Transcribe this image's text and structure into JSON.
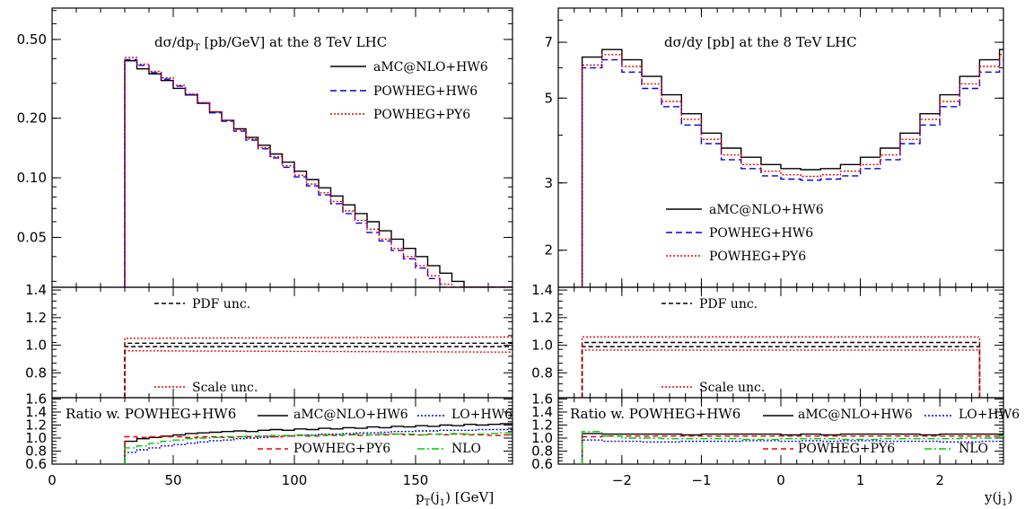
{
  "chart_data": [
    {
      "id": "pt",
      "type": "line",
      "x_label": "p_T(j_1) [GeV]",
      "x_label_main": "p",
      "x_label_sub1": "T",
      "x_label_mid": "(j",
      "x_label_sub2": "1",
      "x_label_end": ") [GeV]",
      "xlim": [
        0,
        190
      ],
      "x_ticks": [
        0,
        50,
        100,
        150
      ],
      "x_tick_labels": [
        "0",
        "50",
        "100",
        "150"
      ],
      "main": {
        "title": "dσ/dp_T [pb/GeV] at the 8 TeV LHC",
        "title_main": "dσ/dp",
        "title_sub": "T",
        "title_rest": " [pb/GeV] at the 8 TeV LHC",
        "yscale": "log",
        "ylim": [
          0.028,
          0.72
        ],
        "y_ticks": [
          0.05,
          0.1,
          0.2,
          0.5
        ],
        "y_tick_labels": [
          "0.05",
          "0.10",
          "0.20",
          "0.50"
        ],
        "legend": [
          {
            "label": "aMC@NLO+HW6",
            "color": "#000000",
            "dash": "none"
          },
          {
            "label": "POWHEG+HW6",
            "color": "#0000ee",
            "dash": "7,4"
          },
          {
            "label": "POWHEG+PY6",
            "color": "#ee0000",
            "dash": "2,2"
          }
        ],
        "series": [
          {
            "name": "aMC@NLO+HW6",
            "x_start": 30,
            "bin_width": 5,
            "values": [
              0.39,
              0.355,
              0.335,
              0.31,
              0.283,
              0.262,
              0.238,
              0.215,
              0.195,
              0.177,
              0.16,
              0.146,
              0.132,
              0.12,
              0.108,
              0.098,
              0.089,
              0.081,
              0.073,
              0.066,
              0.06,
              0.054,
              0.049,
              0.044,
              0.04,
              0.036,
              0.033,
              0.03,
              0.027,
              0.025,
              0.023,
              0.021
            ]
          },
          {
            "name": "POWHEG+HW6",
            "x_start": 30,
            "bin_width": 5,
            "values": [
              0.395,
              0.37,
              0.34,
              0.315,
              0.29,
              0.263,
              0.238,
              0.213,
              0.193,
              0.172,
              0.155,
              0.14,
              0.126,
              0.113,
              0.101,
              0.091,
              0.082,
              0.074,
              0.066,
              0.059,
              0.053,
              0.048,
              0.043,
              0.039,
              0.035,
              0.031,
              0.028,
              0.026,
              0.023,
              0.021,
              0.019,
              0.018
            ]
          },
          {
            "name": "POWHEG+PY6",
            "x_start": 30,
            "bin_width": 5,
            "values": [
              0.405,
              0.375,
              0.345,
              0.32,
              0.293,
              0.265,
              0.24,
              0.216,
              0.195,
              0.175,
              0.157,
              0.142,
              0.128,
              0.115,
              0.103,
              0.093,
              0.084,
              0.076,
              0.068,
              0.061,
              0.055,
              0.049,
              0.044,
              0.04,
              0.036,
              0.032,
              0.029,
              0.026,
              0.024,
              0.022,
              0.02,
              0.018
            ]
          }
        ]
      },
      "unc": {
        "ylim": [
          0.62,
          1.42
        ],
        "y_ticks": [
          0.8,
          1.0,
          1.2,
          1.4
        ],
        "y_tick_labels": [
          "0.8",
          "1.0",
          "1.2",
          "1.4"
        ],
        "legend": [
          {
            "label": "PDF unc.",
            "color": "#000000",
            "dash": "5,3"
          },
          {
            "label": "Scale unc.",
            "color": "#ee0000",
            "dash": "2,2"
          }
        ],
        "series": [
          {
            "name": "PDF up",
            "x": [
              30,
              190
            ],
            "values": [
              1.015,
              1.015
            ]
          },
          {
            "name": "PDF down",
            "x": [
              30,
              190
            ],
            "values": [
              0.99,
              0.99
            ]
          },
          {
            "name": "Scale up",
            "x": [
              30,
              190
            ],
            "values": [
              1.05,
              1.06
            ]
          },
          {
            "name": "Scale down",
            "x": [
              30,
              190
            ],
            "values": [
              0.96,
              0.95
            ]
          }
        ]
      },
      "ratio": {
        "title": "Ratio w. POWHEG+HW6",
        "ylim": [
          0.6,
          1.62
        ],
        "y_ticks": [
          0.6,
          0.8,
          1.0,
          1.2,
          1.4,
          1.6
        ],
        "y_tick_labels": [
          "0.6",
          "0.8",
          "1.0",
          "1.2",
          "1.4",
          "1.6"
        ],
        "legend": [
          {
            "label": "aMC@NLO+HW6",
            "color": "#000000",
            "dash": "none"
          },
          {
            "label": "LO+HW6",
            "color": "#0000ee",
            "dash": "2,2"
          },
          {
            "label": "POWHEG+PY6",
            "color": "#ee0000",
            "dash": "6,4"
          },
          {
            "label": "NLO",
            "color": "#00cc00",
            "dash": "8,3,2,3"
          }
        ],
        "series": [
          {
            "name": "aMC@NLO+HW6",
            "x_start": 30,
            "bin_width": 5,
            "values": [
              0.95,
              0.99,
              1.01,
              1.03,
              1.05,
              1.07,
              1.08,
              1.09,
              1.1,
              1.11,
              1.1,
              1.12,
              1.13,
              1.12,
              1.14,
              1.13,
              1.15,
              1.14,
              1.16,
              1.15,
              1.17,
              1.16,
              1.18,
              1.17,
              1.19,
              1.18,
              1.2,
              1.19,
              1.21,
              1.2,
              1.21,
              1.22
            ]
          },
          {
            "name": "LO+HW6",
            "x_start": 30,
            "bin_width": 5,
            "values": [
              0.78,
              0.82,
              0.85,
              0.88,
              0.9,
              0.92,
              0.94,
              0.96,
              0.97,
              0.99,
              1.0,
              1.01,
              1.02,
              1.03,
              1.04,
              1.05,
              1.06,
              1.06,
              1.07,
              1.08,
              1.08,
              1.09,
              1.1,
              1.1,
              1.11,
              1.11,
              1.12,
              1.12,
              1.12,
              1.13,
              1.13,
              1.13
            ]
          },
          {
            "name": "POWHEG+PY6",
            "x_start": 30,
            "bin_width": 5,
            "values": [
              1.02,
              1.01,
              1.02,
              1.02,
              1.02,
              1.01,
              1.02,
              1.02,
              1.01,
              1.02,
              1.02,
              1.03,
              1.02,
              1.03,
              1.04,
              1.03,
              1.04,
              1.04,
              1.05,
              1.04,
              1.05,
              1.05,
              1.06,
              1.05,
              1.05,
              1.06,
              1.05,
              1.06,
              1.05,
              1.05,
              1.04,
              1.05
            ]
          },
          {
            "name": "NLO",
            "x_start": 30,
            "bin_width": 5,
            "values": [
              0.85,
              0.88,
              0.92,
              0.95,
              0.97,
              0.99,
              1.0,
              1.01,
              1.02,
              1.02,
              1.03,
              1.03,
              1.04,
              1.04,
              1.05,
              1.04,
              1.05,
              1.05,
              1.05,
              1.06,
              1.05,
              1.06,
              1.06,
              1.06,
              1.05,
              1.06,
              1.06,
              1.07,
              1.06,
              1.06,
              1.07,
              1.08
            ]
          }
        ]
      }
    },
    {
      "id": "y",
      "type": "line",
      "x_label": "y(j_1)",
      "x_label_main": "y(j",
      "x_label_sub": "1",
      "x_label_end": ")",
      "xlim": [
        -2.8,
        2.8
      ],
      "x_ticks": [
        -2,
        -1,
        0,
        1,
        2
      ],
      "x_tick_labels": [
        "−2",
        "−1",
        "0",
        "1",
        "2"
      ],
      "main": {
        "title": "dσ/dy [pb] at the 8 TeV LHC",
        "yscale": "log",
        "ylim": [
          1.6,
          8.6
        ],
        "y_ticks": [
          2,
          3,
          5,
          7
        ],
        "y_tick_labels": [
          "2",
          "3",
          "5",
          "7"
        ],
        "legend": [
          {
            "label": "aMC@NLO+HW6",
            "color": "#000000",
            "dash": "none"
          },
          {
            "label": "POWHEG+HW6",
            "color": "#0000ee",
            "dash": "7,4"
          },
          {
            "label": "POWHEG+PY6",
            "color": "#ee0000",
            "dash": "2,2"
          }
        ],
        "series": [
          {
            "name": "aMC@NLO+HW6",
            "x_start": -2.5,
            "bin_width": 0.25,
            "values": [
              6.4,
              6.7,
              6.3,
              5.7,
              5.1,
              4.55,
              4.05,
              3.7,
              3.5,
              3.35,
              3.27,
              3.25,
              3.27,
              3.35,
              3.5,
              3.7,
              4.05,
              4.55,
              5.1,
              5.7,
              6.3,
              6.7,
              6.4
            ]
          },
          {
            "name": "POWHEG+HW6",
            "x_start": -2.5,
            "bin_width": 0.25,
            "values": [
              6.0,
              6.3,
              5.85,
              5.3,
              4.75,
              4.25,
              3.8,
              3.45,
              3.27,
              3.13,
              3.07,
              3.05,
              3.07,
              3.13,
              3.27,
              3.45,
              3.8,
              4.25,
              4.75,
              5.3,
              5.85,
              6.3,
              6.0
            ]
          },
          {
            "name": "POWHEG+PY6",
            "x_start": -2.5,
            "bin_width": 0.25,
            "values": [
              6.1,
              6.5,
              6.05,
              5.45,
              4.9,
              4.4,
              3.9,
              3.55,
              3.35,
              3.22,
              3.15,
              3.12,
              3.15,
              3.22,
              3.35,
              3.55,
              3.9,
              4.4,
              4.9,
              5.45,
              6.05,
              6.5,
              6.1
            ]
          }
        ]
      },
      "unc": {
        "ylim": [
          0.62,
          1.42
        ],
        "y_ticks": [
          0.8,
          1.0,
          1.2,
          1.4
        ],
        "y_tick_labels": [
          "0.8",
          "1.0",
          "1.2",
          "1.4"
        ],
        "legend": [
          {
            "label": "PDF unc.",
            "color": "#000000",
            "dash": "5,3"
          },
          {
            "label": "Scale unc.",
            "color": "#ee0000",
            "dash": "2,2"
          }
        ],
        "series": [
          {
            "name": "PDF up",
            "x": [
              -2.5,
              2.5
            ],
            "values": [
              1.02,
              1.02
            ]
          },
          {
            "name": "PDF down",
            "x": [
              -2.5,
              2.5
            ],
            "values": [
              0.99,
              0.99
            ]
          },
          {
            "name": "Scale up",
            "x": [
              -2.5,
              2.5
            ],
            "values": [
              1.06,
              1.06
            ]
          },
          {
            "name": "Scale down",
            "x": [
              -2.5,
              2.5
            ],
            "values": [
              0.965,
              0.965
            ]
          }
        ]
      },
      "ratio": {
        "title": "Ratio w. POWHEG+HW6",
        "ylim": [
          0.6,
          1.62
        ],
        "y_ticks": [
          0.6,
          0.8,
          1.0,
          1.2,
          1.4,
          1.6
        ],
        "y_tick_labels": [
          "0.6",
          "0.8",
          "1.0",
          "1.2",
          "1.4",
          "1.6"
        ],
        "legend": [
          {
            "label": "aMC@NLO+HW6",
            "color": "#000000",
            "dash": "none"
          },
          {
            "label": "LO+HW6",
            "color": "#0000ee",
            "dash": "2,2"
          },
          {
            "label": "POWHEG+PY6",
            "color": "#ee0000",
            "dash": "6,4"
          },
          {
            "label": "NLO",
            "color": "#00cc00",
            "dash": "8,3,2,3"
          }
        ],
        "series": [
          {
            "name": "aMC@NLO+HW6",
            "x_start": -2.5,
            "bin_width": 0.25,
            "values": [
              1.07,
              1.06,
              1.06,
              1.06,
              1.06,
              1.05,
              1.06,
              1.06,
              1.06,
              1.06,
              1.05,
              1.06,
              1.05,
              1.06,
              1.06,
              1.06,
              1.06,
              1.05,
              1.06,
              1.06,
              1.06,
              1.06,
              1.07
            ]
          },
          {
            "name": "LO+HW6",
            "x_start": -2.5,
            "bin_width": 0.25,
            "values": [
              0.97,
              0.95,
              0.95,
              0.94,
              0.94,
              0.95,
              0.95,
              0.95,
              0.96,
              0.96,
              0.95,
              0.96,
              0.95,
              0.96,
              0.96,
              0.95,
              0.95,
              0.95,
              0.94,
              0.94,
              0.95,
              0.95,
              0.97
            ]
          },
          {
            "name": "POWHEG+PY6",
            "x_start": -2.5,
            "bin_width": 0.25,
            "values": [
              1.02,
              1.03,
              1.03,
              1.03,
              1.03,
              1.03,
              1.03,
              1.03,
              1.03,
              1.03,
              1.03,
              1.03,
              1.03,
              1.03,
              1.03,
              1.03,
              1.03,
              1.03,
              1.03,
              1.03,
              1.03,
              1.03,
              1.02
            ]
          },
          {
            "name": "NLO",
            "x_start": -2.5,
            "bin_width": 0.25,
            "values": [
              1.1,
              1.03,
              1.0,
              1.0,
              0.99,
              0.99,
              0.99,
              0.99,
              0.98,
              0.98,
              0.99,
              0.99,
              0.99,
              0.98,
              0.98,
              0.99,
              0.99,
              0.99,
              0.99,
              1.0,
              1.0,
              1.03,
              1.1
            ]
          }
        ]
      }
    }
  ]
}
